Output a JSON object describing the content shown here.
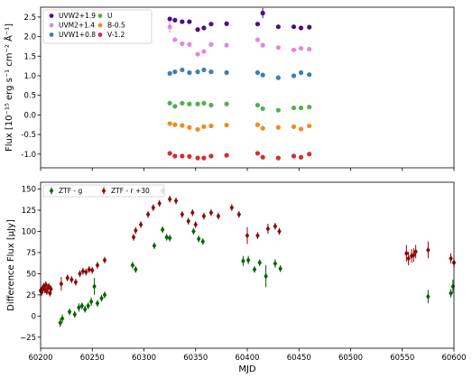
{
  "chart_data": [
    {
      "type": "scatter",
      "ylabel": "Flux [10$^{-15}$ erg s$^{-1}$ cm$^{-2}$ Å$^{-1}$]",
      "xlim": [
        60200,
        60600
      ],
      "ylim": [
        -1.35,
        2.75
      ],
      "yticks": [
        "-1.0",
        "-0.5",
        "0.0",
        "0.5",
        "1.0",
        "1.5",
        "2.0",
        "2.5"
      ],
      "xticks": [
        "60200",
        "60250",
        "60300",
        "60350",
        "60400",
        "60450",
        "60500",
        "60550",
        "60600"
      ],
      "legend_position": "top-left",
      "series": [
        {
          "name": "UVW2+1.9",
          "color": "#4b0d8c",
          "x": [
            60325,
            60330,
            60337,
            60344,
            60352,
            60358,
            60365,
            60380,
            60410,
            60415,
            60430,
            60445,
            60452,
            60460
          ],
          "y": [
            2.45,
            2.42,
            2.38,
            2.38,
            2.18,
            2.22,
            2.32,
            2.33,
            2.32,
            2.6,
            2.25,
            2.25,
            2.22,
            2.24
          ],
          "err": [
            0.05,
            0.05,
            0.05,
            0.05,
            0.05,
            0.05,
            0.05,
            0.05,
            0.05,
            0.13,
            0.05,
            0.05,
            0.05,
            0.05
          ]
        },
        {
          "name": "UVM2+1.4",
          "color": "#e783e3",
          "x": [
            60325,
            60330,
            60337,
            60344,
            60352,
            60358,
            60365,
            60380,
            60410,
            60415,
            60430,
            60445,
            60452,
            60460
          ],
          "y": [
            2.25,
            1.92,
            1.82,
            1.8,
            1.55,
            1.62,
            1.8,
            1.78,
            1.92,
            1.78,
            1.72,
            1.66,
            1.7,
            1.68
          ],
          "err": [
            0.15,
            0.05,
            0.05,
            0.05,
            0.05,
            0.05,
            0.05,
            0.05,
            0.05,
            0.05,
            0.05,
            0.05,
            0.05,
            0.05
          ]
        },
        {
          "name": "UVW1+0.8",
          "color": "#3a7fb5",
          "x": [
            60325,
            60330,
            60337,
            60344,
            60352,
            60358,
            60365,
            60380,
            60410,
            60415,
            60430,
            60445,
            60452,
            60460
          ],
          "y": [
            1.06,
            1.1,
            1.15,
            1.08,
            1.1,
            1.15,
            1.1,
            1.08,
            1.08,
            1.02,
            0.95,
            1.0,
            1.08,
            1.03
          ],
          "err": [
            0.04,
            0.04,
            0.04,
            0.04,
            0.04,
            0.04,
            0.04,
            0.04,
            0.04,
            0.04,
            0.04,
            0.04,
            0.04,
            0.04
          ]
        },
        {
          "name": "U",
          "color": "#52b04e",
          "x": [
            60325,
            60330,
            60337,
            60344,
            60352,
            60358,
            60365,
            60380,
            60410,
            60415,
            60430,
            60445,
            60452,
            60460
          ],
          "y": [
            0.3,
            0.22,
            0.3,
            0.28,
            0.28,
            0.3,
            0.25,
            0.28,
            0.25,
            0.16,
            0.12,
            0.18,
            0.18,
            0.2
          ],
          "err": [
            0.04,
            0.04,
            0.04,
            0.04,
            0.04,
            0.04,
            0.04,
            0.04,
            0.04,
            0.04,
            0.04,
            0.04,
            0.04,
            0.04
          ]
        },
        {
          "name": "B-0.5",
          "color": "#f28a22",
          "x": [
            60325,
            60330,
            60337,
            60344,
            60352,
            60358,
            60365,
            60380,
            60410,
            60415,
            60430,
            60445,
            60452,
            60460
          ],
          "y": [
            -0.22,
            -0.25,
            -0.27,
            -0.32,
            -0.37,
            -0.3,
            -0.28,
            -0.26,
            -0.25,
            -0.34,
            -0.32,
            -0.3,
            -0.36,
            -0.28
          ],
          "err": [
            0.04,
            0.04,
            0.04,
            0.04,
            0.04,
            0.04,
            0.04,
            0.04,
            0.04,
            0.04,
            0.04,
            0.04,
            0.04,
            0.04
          ]
        },
        {
          "name": "V-1.2",
          "color": "#d62d2d",
          "x": [
            60325,
            60330,
            60337,
            60344,
            60352,
            60358,
            60365,
            60380,
            60410,
            60415,
            60430,
            60445,
            60452,
            60460
          ],
          "y": [
            -0.98,
            -1.05,
            -1.05,
            -1.06,
            -1.1,
            -1.1,
            -1.05,
            -1.03,
            -0.98,
            -1.08,
            -1.1,
            -1.05,
            -1.08,
            -1.0
          ],
          "err": [
            0.04,
            0.04,
            0.04,
            0.04,
            0.04,
            0.04,
            0.04,
            0.04,
            0.04,
            0.04,
            0.04,
            0.04,
            0.04,
            0.04
          ]
        }
      ]
    },
    {
      "type": "scatter",
      "xlabel": "MJD",
      "ylabel": "Difference Flux [$\\mu$Jy]",
      "xlim": [
        60200,
        60600
      ],
      "ylim": [
        -38,
        158
      ],
      "yticks": [
        "−25",
        "0",
        "25",
        "50",
        "75",
        "100",
        "125",
        "150"
      ],
      "xticks": [
        "60200",
        "60250",
        "60300",
        "60350",
        "60400",
        "60450",
        "60500",
        "60550",
        "60600"
      ],
      "legend_position": "top-left",
      "series": [
        {
          "name": "ZTF - g",
          "color": "#006400",
          "x": [
            60219,
            60221,
            60228,
            60233,
            60237,
            60240,
            60243,
            60246,
            60249,
            60252,
            60255,
            60259,
            60262,
            60289,
            60292,
            60310,
            60318,
            60322,
            60325,
            60348,
            60353,
            60357,
            60396,
            60401,
            60407,
            60412,
            60418,
            60427,
            60432,
            60575,
            60597,
            60599
          ],
          "y": [
            -8,
            -3,
            5,
            2,
            10,
            12,
            8,
            12,
            17,
            35,
            15,
            21,
            25,
            60,
            55,
            83,
            102,
            93,
            92,
            100,
            91,
            88,
            65,
            66,
            55,
            63,
            47,
            62,
            56,
            23,
            27,
            35
          ],
          "err": [
            5,
            5,
            4,
            4,
            5,
            4,
            4,
            4,
            5,
            10,
            4,
            4,
            4,
            4,
            4,
            4,
            4,
            4,
            4,
            4,
            4,
            4,
            6,
            5,
            4,
            4,
            13,
            5,
            4,
            8,
            5,
            8
          ]
        },
        {
          "name": "ZTF - r +30",
          "color": "#8b0a0a",
          "x": [
            60200,
            60201,
            60202,
            60203,
            60204,
            60205,
            60206,
            60207,
            60208,
            60209,
            60210,
            60220,
            60226,
            60230,
            60234,
            60238,
            60241,
            60244,
            60247,
            60250,
            60255,
            60262,
            60290,
            60292,
            60297,
            60304,
            60309,
            60315,
            60318,
            60325,
            60331,
            60337,
            60343,
            60347,
            60350,
            60358,
            60365,
            60372,
            60385,
            60392,
            60400,
            60410,
            60420,
            60427,
            60431,
            60554,
            60556,
            60559,
            60561,
            60563,
            60575,
            60597,
            60600
          ],
          "y": [
            30,
            28,
            33,
            35,
            31,
            37,
            29,
            33,
            35,
            27,
            32,
            38,
            45,
            43,
            40,
            50,
            53,
            52,
            55,
            54,
            60,
            66,
            93,
            101,
            108,
            120,
            128,
            133,
            148,
            138,
            136,
            120,
            112,
            122,
            108,
            118,
            122,
            118,
            128,
            120,
            95,
            95,
            103,
            106,
            100,
            74,
            68,
            71,
            72,
            76,
            78,
            68,
            63
          ],
          "err": [
            4,
            4,
            4,
            4,
            4,
            4,
            4,
            4,
            4,
            4,
            4,
            8,
            4,
            4,
            4,
            4,
            4,
            4,
            4,
            4,
            4,
            4,
            4,
            4,
            4,
            4,
            4,
            4,
            4,
            4,
            4,
            4,
            4,
            4,
            4,
            4,
            4,
            4,
            4,
            4,
            10,
            4,
            6,
            4,
            4,
            10,
            8,
            8,
            8,
            8,
            10,
            6,
            6
          ]
        }
      ]
    }
  ]
}
